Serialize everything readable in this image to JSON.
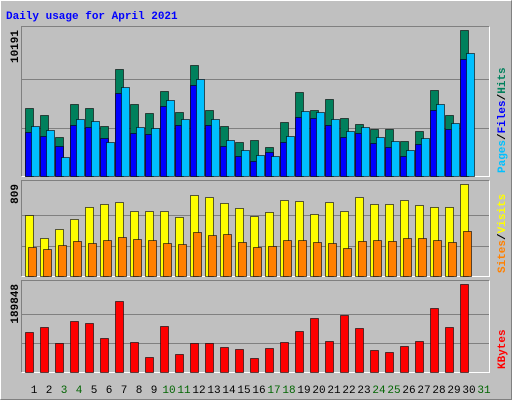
{
  "title": "Daily usage for April 2021",
  "legend_separator": "/",
  "categories": [
    "1",
    "2",
    "3",
    "4",
    "5",
    "6",
    "7",
    "8",
    "9",
    "10",
    "11",
    "12",
    "13",
    "14",
    "15",
    "16",
    "17",
    "18",
    "19",
    "20",
    "21",
    "22",
    "23",
    "24",
    "25",
    "26",
    "27",
    "28",
    "29",
    "30",
    "31"
  ],
  "category_colors": [
    "#000000",
    "#000000",
    "#006400",
    "#006400",
    "#000000",
    "#000000",
    "#000000",
    "#000000",
    "#000000",
    "#006400",
    "#006400",
    "#000000",
    "#000000",
    "#000000",
    "#000000",
    "#000000",
    "#006400",
    "#006400",
    "#000000",
    "#000000",
    "#000000",
    "#000000",
    "#000000",
    "#006400",
    "#006400",
    "#000000",
    "#000000",
    "#000000",
    "#000000",
    "#000000",
    "#006400"
  ],
  "chart_data": [
    {
      "type": "bar",
      "ylim": [
        0,
        10191
      ],
      "series": [
        {
          "name": "Hits",
          "color": "#00805c",
          "label_color": "#00805c",
          "values": [
            4746,
            4258,
            2722,
            5026,
            4746,
            3490,
            7469,
            5026,
            4397,
            5933,
            4467,
            7748,
            4607,
            3490,
            2373,
            2513,
            2024,
            3769,
            5863,
            4607,
            5375,
            4048,
            3630,
            3281,
            3281,
            2443,
            3141,
            6003,
            4258,
            10191,
            null
          ]
        },
        {
          "name": "Pages",
          "color": "#0000ff",
          "label_color": "#00c0ff",
          "values": [
            3071,
            2792,
            2094,
            3560,
            3420,
            2652,
            5793,
            3001,
            2932,
            4886,
            3560,
            6352,
            3560,
            2094,
            1396,
            1047,
            1675,
            2373,
            4118,
            4048,
            3560,
            2722,
            3001,
            2303,
            2024,
            1396,
            2234,
            4607,
            3281,
            8167,
            null
          ]
        },
        {
          "name": "Files",
          "color": "#00c0ff",
          "label_color": "#0000ff",
          "values": [
            3490,
            3211,
            1326,
            3979,
            3839,
            2373,
            6212,
            3420,
            3350,
            5305,
            3979,
            6771,
            3979,
            2513,
            1815,
            1466,
            1396,
            2792,
            4537,
            4467,
            3979,
            3141,
            3420,
            2722,
            2443,
            1815,
            2652,
            5026,
            3699,
            8585,
            null
          ]
        }
      ],
      "legend_order": [
        1,
        2,
        0
      ]
    },
    {
      "type": "bar",
      "ylim": [
        0,
        809
      ],
      "series": [
        {
          "name": "Visits",
          "color": "#ffff00",
          "label_color": "#ffff00",
          "values": [
            536,
            334,
            413,
            501,
            607,
            633,
            650,
            571,
            571,
            571,
            519,
            712,
            694,
            642,
            598,
            527,
            563,
            668,
            659,
            545,
            650,
            571,
            694,
            633,
            633,
            668,
            624,
            607,
            607,
            809,
            null
          ]
        },
        {
          "name": "Sites",
          "color": "#ff8000",
          "label_color": "#ff8000",
          "values": [
            255,
            237,
            272,
            308,
            290,
            316,
            343,
            325,
            316,
            290,
            281,
            387,
            360,
            369,
            299,
            255,
            264,
            316,
            316,
            299,
            290,
            246,
            308,
            316,
            308,
            334,
            334,
            316,
            299,
            396,
            null
          ]
        }
      ],
      "legend_order": [
        1,
        0
      ]
    },
    {
      "type": "bar",
      "ylim": [
        0,
        189848
      ],
      "series": [
        {
          "name": "KBytes",
          "color": "#ff0000",
          "label_color": "#ff0000",
          "values": [
            86280,
            97065,
            62553,
            110007,
            105693,
            73338,
            153147,
            64710,
            32355,
            99222,
            38826,
            62553,
            62553,
            53925,
            49611,
            30198,
            51768,
            64710,
            88437,
            116478,
            66867,
            122949,
            94908,
            47454,
            43140,
            56082,
            66867,
            138048,
            97065,
            189848,
            null
          ]
        }
      ],
      "legend_order": [
        0
      ]
    }
  ]
}
